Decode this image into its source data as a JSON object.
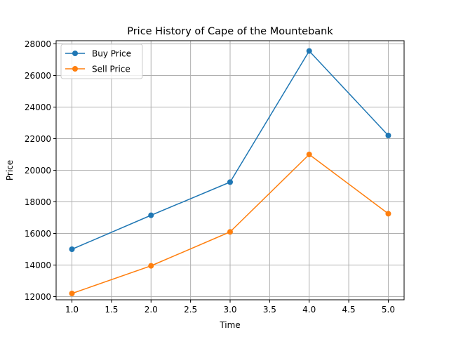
{
  "chart_data": {
    "type": "line",
    "title": "Price History of Cape of the Mountebank",
    "xlabel": "Time",
    "ylabel": "Price",
    "x": [
      1,
      2,
      3,
      4,
      5
    ],
    "xlim": [
      0.8,
      5.2
    ],
    "ylim": [
      11800,
      28200
    ],
    "xticks": [
      1.0,
      1.5,
      2.0,
      2.5,
      3.0,
      3.5,
      4.0,
      4.5,
      5.0
    ],
    "xtick_labels": [
      "1.0",
      "1.5",
      "2.0",
      "2.5",
      "3.0",
      "3.5",
      "4.0",
      "4.5",
      "5.0"
    ],
    "yticks": [
      12000,
      14000,
      16000,
      18000,
      20000,
      22000,
      24000,
      26000,
      28000
    ],
    "ytick_labels": [
      "12000",
      "14000",
      "16000",
      "18000",
      "20000",
      "22000",
      "24000",
      "26000",
      "28000"
    ],
    "grid": true,
    "legend_position": "top-left",
    "series": [
      {
        "name": "Buy Price",
        "color": "#1f77b4",
        "marker": "circle",
        "values": [
          15000,
          17150,
          19250,
          27550,
          22200
        ]
      },
      {
        "name": "Sell Price",
        "color": "#ff7f0e",
        "marker": "circle",
        "values": [
          12200,
          13950,
          16100,
          21000,
          17250
        ]
      }
    ]
  }
}
